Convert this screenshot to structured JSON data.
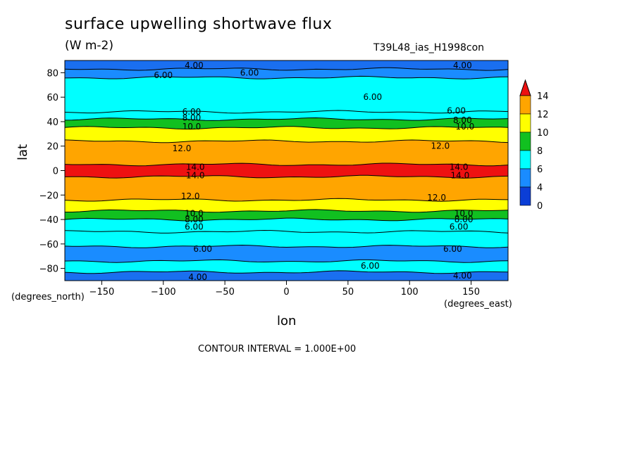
{
  "chart_data": {
    "type": "contour",
    "title": "surface upwelling shortwave flux",
    "units": "(W m-2)",
    "run_name": "T39L48_ias_H1998con",
    "xlabel": "lon",
    "ylabel": "lat",
    "x_unit_note": "(degrees_east)",
    "y_unit_note": "(degrees_north)",
    "contour_interval_text": "CONTOUR INTERVAL = 1.000E+00",
    "xlim": [
      -180,
      180
    ],
    "ylim": [
      -90,
      90
    ],
    "x_ticks": [
      -150,
      -100,
      -50,
      0,
      50,
      100,
      150
    ],
    "y_ticks": [
      80,
      60,
      40,
      20,
      0,
      -20,
      -40,
      -60,
      -80
    ],
    "colorbar": {
      "levels": [
        0,
        2,
        4,
        6,
        8,
        10,
        12,
        14
      ],
      "labels": [
        "14",
        "12",
        "10",
        "8",
        "6",
        "4",
        "0"
      ],
      "colors": [
        "#0b3ed6",
        "#1a8cff",
        "#00ffff",
        "#11c020",
        "#ffff00",
        "#ffa500",
        "#ee1111"
      ]
    },
    "bands": [
      {
        "lat_from": 90,
        "lat_to": 83,
        "color": "#1a6ff0"
      },
      {
        "lat_from": 83,
        "lat_to": 76,
        "color": "#1a8cff"
      },
      {
        "lat_from": 76,
        "lat_to": 48,
        "color": "#00ffff"
      },
      {
        "lat_from": 48,
        "lat_to": 42,
        "color": "#00ffff"
      },
      {
        "lat_from": 42,
        "lat_to": 35,
        "color": "#11c020"
      },
      {
        "lat_from": 35,
        "lat_to": 24,
        "color": "#ffff00"
      },
      {
        "lat_from": 24,
        "lat_to": 5,
        "color": "#ffa500"
      },
      {
        "lat_from": 5,
        "lat_to": -5,
        "color": "#ee1111"
      },
      {
        "lat_from": -5,
        "lat_to": -24,
        "color": "#ffa500"
      },
      {
        "lat_from": -24,
        "lat_to": -33,
        "color": "#ffff00"
      },
      {
        "lat_from": -33,
        "lat_to": -40,
        "color": "#11c020"
      },
      {
        "lat_from": -40,
        "lat_to": -50,
        "color": "#00ffff"
      },
      {
        "lat_from": -50,
        "lat_to": -62,
        "color": "#00ffff"
      },
      {
        "lat_from": -62,
        "lat_to": -74,
        "color": "#1a8cff"
      },
      {
        "lat_from": -74,
        "lat_to": -83,
        "color": "#00ffff"
      },
      {
        "lat_from": -83,
        "lat_to": -90,
        "color": "#1a6ff0"
      }
    ],
    "contour_labels": [
      {
        "text": "4.00",
        "lon": -75,
        "lat": 86
      },
      {
        "text": "4.00",
        "lon": 143,
        "lat": 86
      },
      {
        "text": "6.00",
        "lon": -100,
        "lat": 78
      },
      {
        "text": "6.00",
        "lon": -30,
        "lat": 80
      },
      {
        "text": "6.00",
        "lon": 70,
        "lat": 60
      },
      {
        "text": "6.00",
        "lon": 138,
        "lat": 49
      },
      {
        "text": "6.00",
        "lon": -77,
        "lat": 48
      },
      {
        "text": "8.00",
        "lon": -77,
        "lat": 43
      },
      {
        "text": "8.00",
        "lon": 143,
        "lat": 41
      },
      {
        "text": "10.0",
        "lon": -77,
        "lat": 36
      },
      {
        "text": "10.0",
        "lon": 145,
        "lat": 36
      },
      {
        "text": "12.0",
        "lon": -85,
        "lat": 18
      },
      {
        "text": "12.0",
        "lon": 125,
        "lat": 20
      },
      {
        "text": "14.0",
        "lon": -74,
        "lat": 3
      },
      {
        "text": "14.0",
        "lon": 140,
        "lat": 3
      },
      {
        "text": "14.0",
        "lon": -74,
        "lat": -4
      },
      {
        "text": "14.0",
        "lon": 141,
        "lat": -4
      },
      {
        "text": "12.0",
        "lon": -78,
        "lat": -21
      },
      {
        "text": "12.0",
        "lon": 122,
        "lat": -22
      },
      {
        "text": "10.0",
        "lon": -75,
        "lat": -35
      },
      {
        "text": "10.0",
        "lon": 144,
        "lat": -35
      },
      {
        "text": "8.00",
        "lon": -75,
        "lat": -40
      },
      {
        "text": "8.00",
        "lon": 144,
        "lat": -40
      },
      {
        "text": "6.00",
        "lon": -75,
        "lat": -46
      },
      {
        "text": "6.00",
        "lon": 140,
        "lat": -46
      },
      {
        "text": "6.00",
        "lon": -68,
        "lat": -64
      },
      {
        "text": "6.00",
        "lon": 135,
        "lat": -64
      },
      {
        "text": "6.00",
        "lon": 68,
        "lat": -78
      },
      {
        "text": "4.00",
        "lon": -72,
        "lat": -87
      },
      {
        "text": "4.00",
        "lon": 143,
        "lat": -86
      }
    ]
  }
}
